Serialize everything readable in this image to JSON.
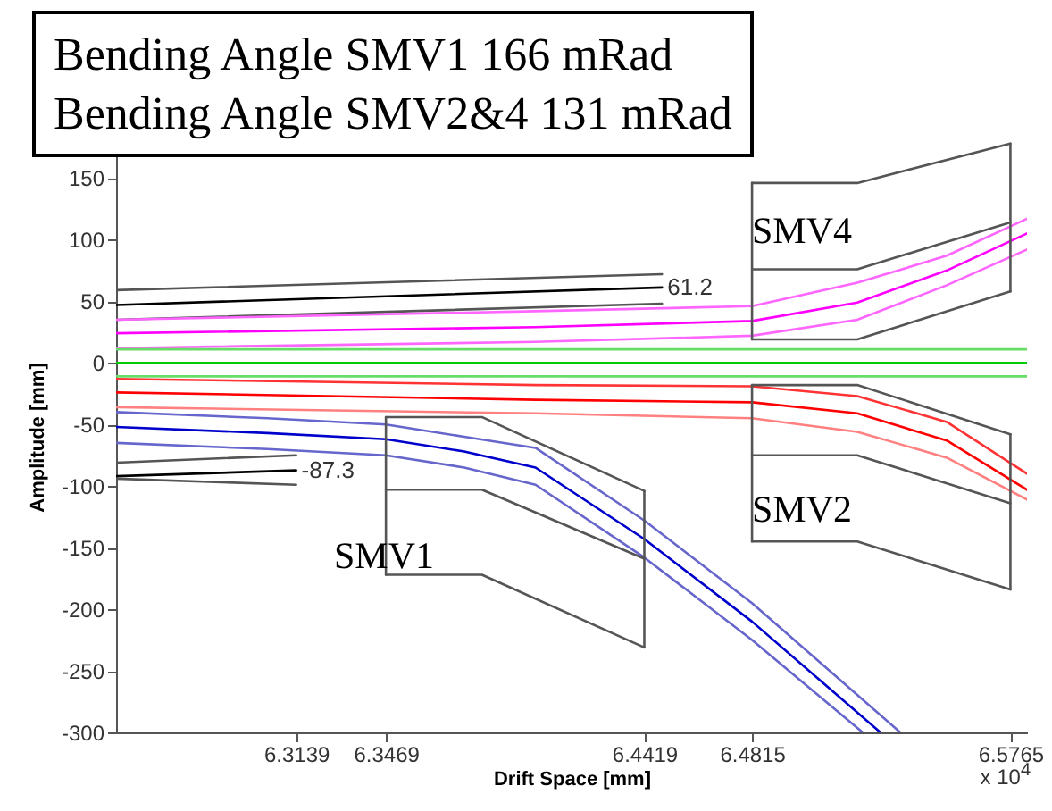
{
  "chart_data": {
    "type": "line",
    "title": "Bending Angle SMV1 166 mRad",
    "subtitle": "Bending Angle SMV2&4 131 mRad",
    "xlabel": "Drift Space [mm]",
    "ylabel": "Amplitude [mm]",
    "xlim": [
      6.2477,
      6.5826
    ],
    "xticks": [
      6.3139,
      6.3469,
      6.4419,
      6.4815,
      6.5765
    ],
    "ylim": [
      -300,
      180
    ],
    "yticks": [
      -300,
      -250,
      -200,
      -150,
      -100,
      -50,
      0,
      50,
      100,
      150
    ],
    "grid": false,
    "legend": false,
    "marker": "none",
    "line_style": "solid",
    "series": [
      {
        "color": "#555555",
        "x": [
          6.2477,
          6.4484
        ],
        "values": [
          59,
          72
        ]
      },
      {
        "color": "#000000",
        "x": [
          6.2477,
          6.4484
        ],
        "values": [
          47,
          61.2
        ]
      },
      {
        "color": "#555555",
        "x": [
          6.2477,
          6.4484
        ],
        "values": [
          35,
          48
        ]
      },
      {
        "color": "#ff66ff",
        "x": [
          6.2477,
          6.4019,
          6.4815,
          6.5202,
          6.5531,
          6.5826
        ],
        "values": [
          35,
          42,
          46,
          65,
          87,
          117
        ]
      },
      {
        "color": "#ff00ff",
        "x": [
          6.2477,
          6.4019,
          6.4815,
          6.5202,
          6.5531,
          6.5826
        ],
        "values": [
          24,
          29,
          34,
          49,
          75,
          105
        ]
      },
      {
        "color": "#ff66ff",
        "x": [
          6.2477,
          6.4019,
          6.4815,
          6.5202,
          6.5531,
          6.5826
        ],
        "values": [
          12,
          17,
          22,
          35,
          63,
          92
        ]
      },
      {
        "color": "#66dd66",
        "x": [
          6.2477,
          6.5826
        ],
        "values": [
          11,
          11
        ]
      },
      {
        "color": "#00cc00",
        "x": [
          6.2477,
          6.5826
        ],
        "values": [
          0,
          0
        ]
      },
      {
        "color": "#66dd66",
        "x": [
          6.2477,
          6.5826
        ],
        "values": [
          -11,
          -11
        ]
      },
      {
        "color": "#ff3333",
        "x": [
          6.2477,
          6.4019,
          6.4815,
          6.5202,
          6.5531,
          6.5826
        ],
        "values": [
          -13,
          -18,
          -19,
          -27,
          -48,
          -90
        ]
      },
      {
        "color": "#ff0000",
        "x": [
          6.2477,
          6.4019,
          6.4815,
          6.5202,
          6.5531,
          6.5826
        ],
        "values": [
          -24,
          -30,
          -32,
          -41,
          -63,
          -103
        ]
      },
      {
        "color": "#ff8080",
        "x": [
          6.2477,
          6.4019,
          6.4815,
          6.5202,
          6.5531,
          6.5826
        ],
        "values": [
          -36,
          -41,
          -45,
          -56,
          -77,
          -111
        ]
      },
      {
        "color": "#6666cc",
        "x": [
          6.2477,
          6.3034,
          6.3469,
          6.3757,
          6.4019,
          6.4419,
          6.4815,
          6.536
        ],
        "values": [
          -40,
          -45,
          -50,
          -60,
          -69,
          -128,
          -195,
          -300
        ]
      },
      {
        "color": "#0000cc",
        "x": [
          6.2477,
          6.3034,
          6.3469,
          6.3757,
          6.4019,
          6.4419,
          6.4815,
          6.5287
        ],
        "values": [
          -52,
          -57,
          -62,
          -72,
          -85,
          -143,
          -210,
          -300
        ]
      },
      {
        "color": "#6666cc",
        "x": [
          6.2477,
          6.3034,
          6.3469,
          6.3757,
          6.4019,
          6.4419,
          6.4815,
          6.5222
        ],
        "values": [
          -65,
          -70,
          -75,
          -85,
          -99,
          -158,
          -225,
          -300
        ]
      },
      {
        "color": "#555555",
        "x": [
          6.2477,
          6.3139
        ],
        "values": [
          -81,
          -75
        ]
      },
      {
        "color": "#000000",
        "x": [
          6.2477,
          6.3139
        ],
        "values": [
          -92,
          -87.3
        ]
      },
      {
        "color": "#555555",
        "x": [
          6.2477,
          6.3139
        ],
        "values": [
          -94,
          -99
        ]
      },
      {
        "color": "#555555",
        "x": [
          6.3469,
          6.3822,
          6.4419
        ],
        "values": [
          -44,
          -44,
          -104
        ]
      },
      {
        "color": "#555555",
        "x": [
          6.3469,
          6.3822,
          6.4419
        ],
        "values": [
          -172,
          -172,
          -231
        ]
      },
      {
        "color": "#555555",
        "x": [
          6.3469,
          6.3822,
          6.4419
        ],
        "values": [
          -103,
          -103,
          -159
        ]
      },
      {
        "color": "#555555",
        "x": [
          6.3469,
          6.3469
        ],
        "values": [
          -44,
          -172
        ]
      },
      {
        "color": "#555555",
        "x": [
          6.4419,
          6.4419
        ],
        "values": [
          -104,
          -231
        ]
      },
      {
        "color": "#555555",
        "x": [
          6.4815,
          6.5202,
          6.5765
        ],
        "values": [
          -18,
          -18,
          -58
        ]
      },
      {
        "color": "#555555",
        "x": [
          6.4815,
          6.5202,
          6.5765
        ],
        "values": [
          -145,
          -145,
          -184
        ]
      },
      {
        "color": "#555555",
        "x": [
          6.4815,
          6.5202,
          6.5765
        ],
        "values": [
          -75,
          -75,
          -114
        ]
      },
      {
        "color": "#555555",
        "x": [
          6.4815,
          6.4815
        ],
        "values": [
          -18,
          -145
        ]
      },
      {
        "color": "#555555",
        "x": [
          6.5765,
          6.5765
        ],
        "values": [
          -58,
          -184
        ]
      },
      {
        "color": "#555555",
        "x": [
          6.4815,
          6.5202,
          6.5765
        ],
        "values": [
          146,
          146,
          178
        ]
      },
      {
        "color": "#555555",
        "x": [
          6.4815,
          6.5202,
          6.5765
        ],
        "values": [
          19,
          19,
          58
        ]
      },
      {
        "color": "#555555",
        "x": [
          6.4815,
          6.5202,
          6.5765
        ],
        "values": [
          76,
          76,
          114
        ]
      },
      {
        "color": "#555555",
        "x": [
          6.4815,
          6.4815
        ],
        "values": [
          19,
          146
        ]
      },
      {
        "color": "#555555",
        "x": [
          6.5765,
          6.5765
        ],
        "values": [
          58,
          178
        ]
      }
    ],
    "annotations": [
      {
        "text": "61.2",
        "x": 6.4484,
        "y": 61.2
      },
      {
        "text": "-87.3",
        "x": 6.3139,
        "y": -87.3
      },
      "SMV1",
      "SMV2",
      "SMV4",
      "x 10$^{4}$"
    ]
  }
}
